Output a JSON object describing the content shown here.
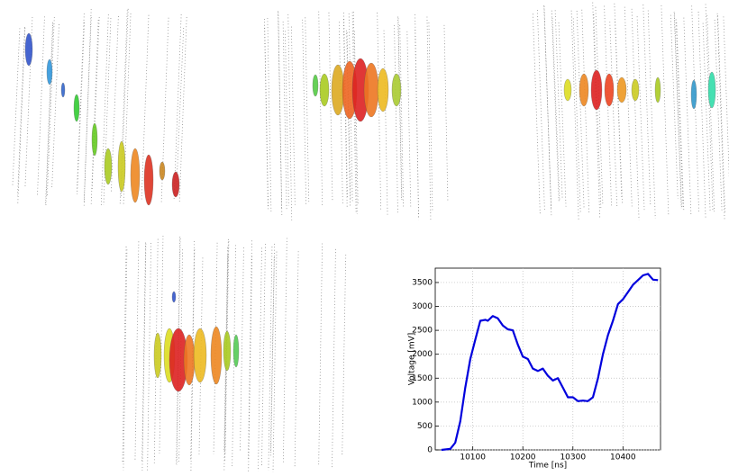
{
  "chart_data": {
    "type": "line",
    "x_label": "Time [ns]",
    "y_label": "Voltage [mV]",
    "xlim": [
      10025,
      10475
    ],
    "ylim": [
      0,
      3800
    ],
    "xticks": [
      10100,
      10200,
      10300,
      10400
    ],
    "yticks": [
      0,
      500,
      1000,
      1500,
      2000,
      2500,
      3000,
      3500
    ],
    "grid": true,
    "series": [
      {
        "color": "#0000dd",
        "x": [
          10037,
          10055,
          10065,
          10075,
          10085,
          10095,
          10105,
          10115,
          10125,
          10130,
          10140,
          10150,
          10160,
          10170,
          10180,
          10190,
          10200,
          10210,
          10220,
          10230,
          10240,
          10250,
          10260,
          10270,
          10280,
          10290,
          10300,
          10310,
          10320,
          10330,
          10340,
          10350,
          10360,
          10370,
          10380,
          10390,
          10400,
          10410,
          10420,
          10430,
          10440,
          10450,
          10460,
          10470
        ],
        "values": [
          0,
          20,
          150,
          600,
          1300,
          1900,
          2300,
          2700,
          2720,
          2700,
          2800,
          2750,
          2600,
          2520,
          2500,
          2200,
          1950,
          1900,
          1700,
          1650,
          1700,
          1550,
          1450,
          1500,
          1300,
          1100,
          1100,
          1020,
          1030,
          1020,
          1100,
          1500,
          2000,
          2400,
          2700,
          3050,
          3150,
          3300,
          3450,
          3550,
          3650,
          3680,
          3560,
          3550
        ]
      }
    ]
  }
}
